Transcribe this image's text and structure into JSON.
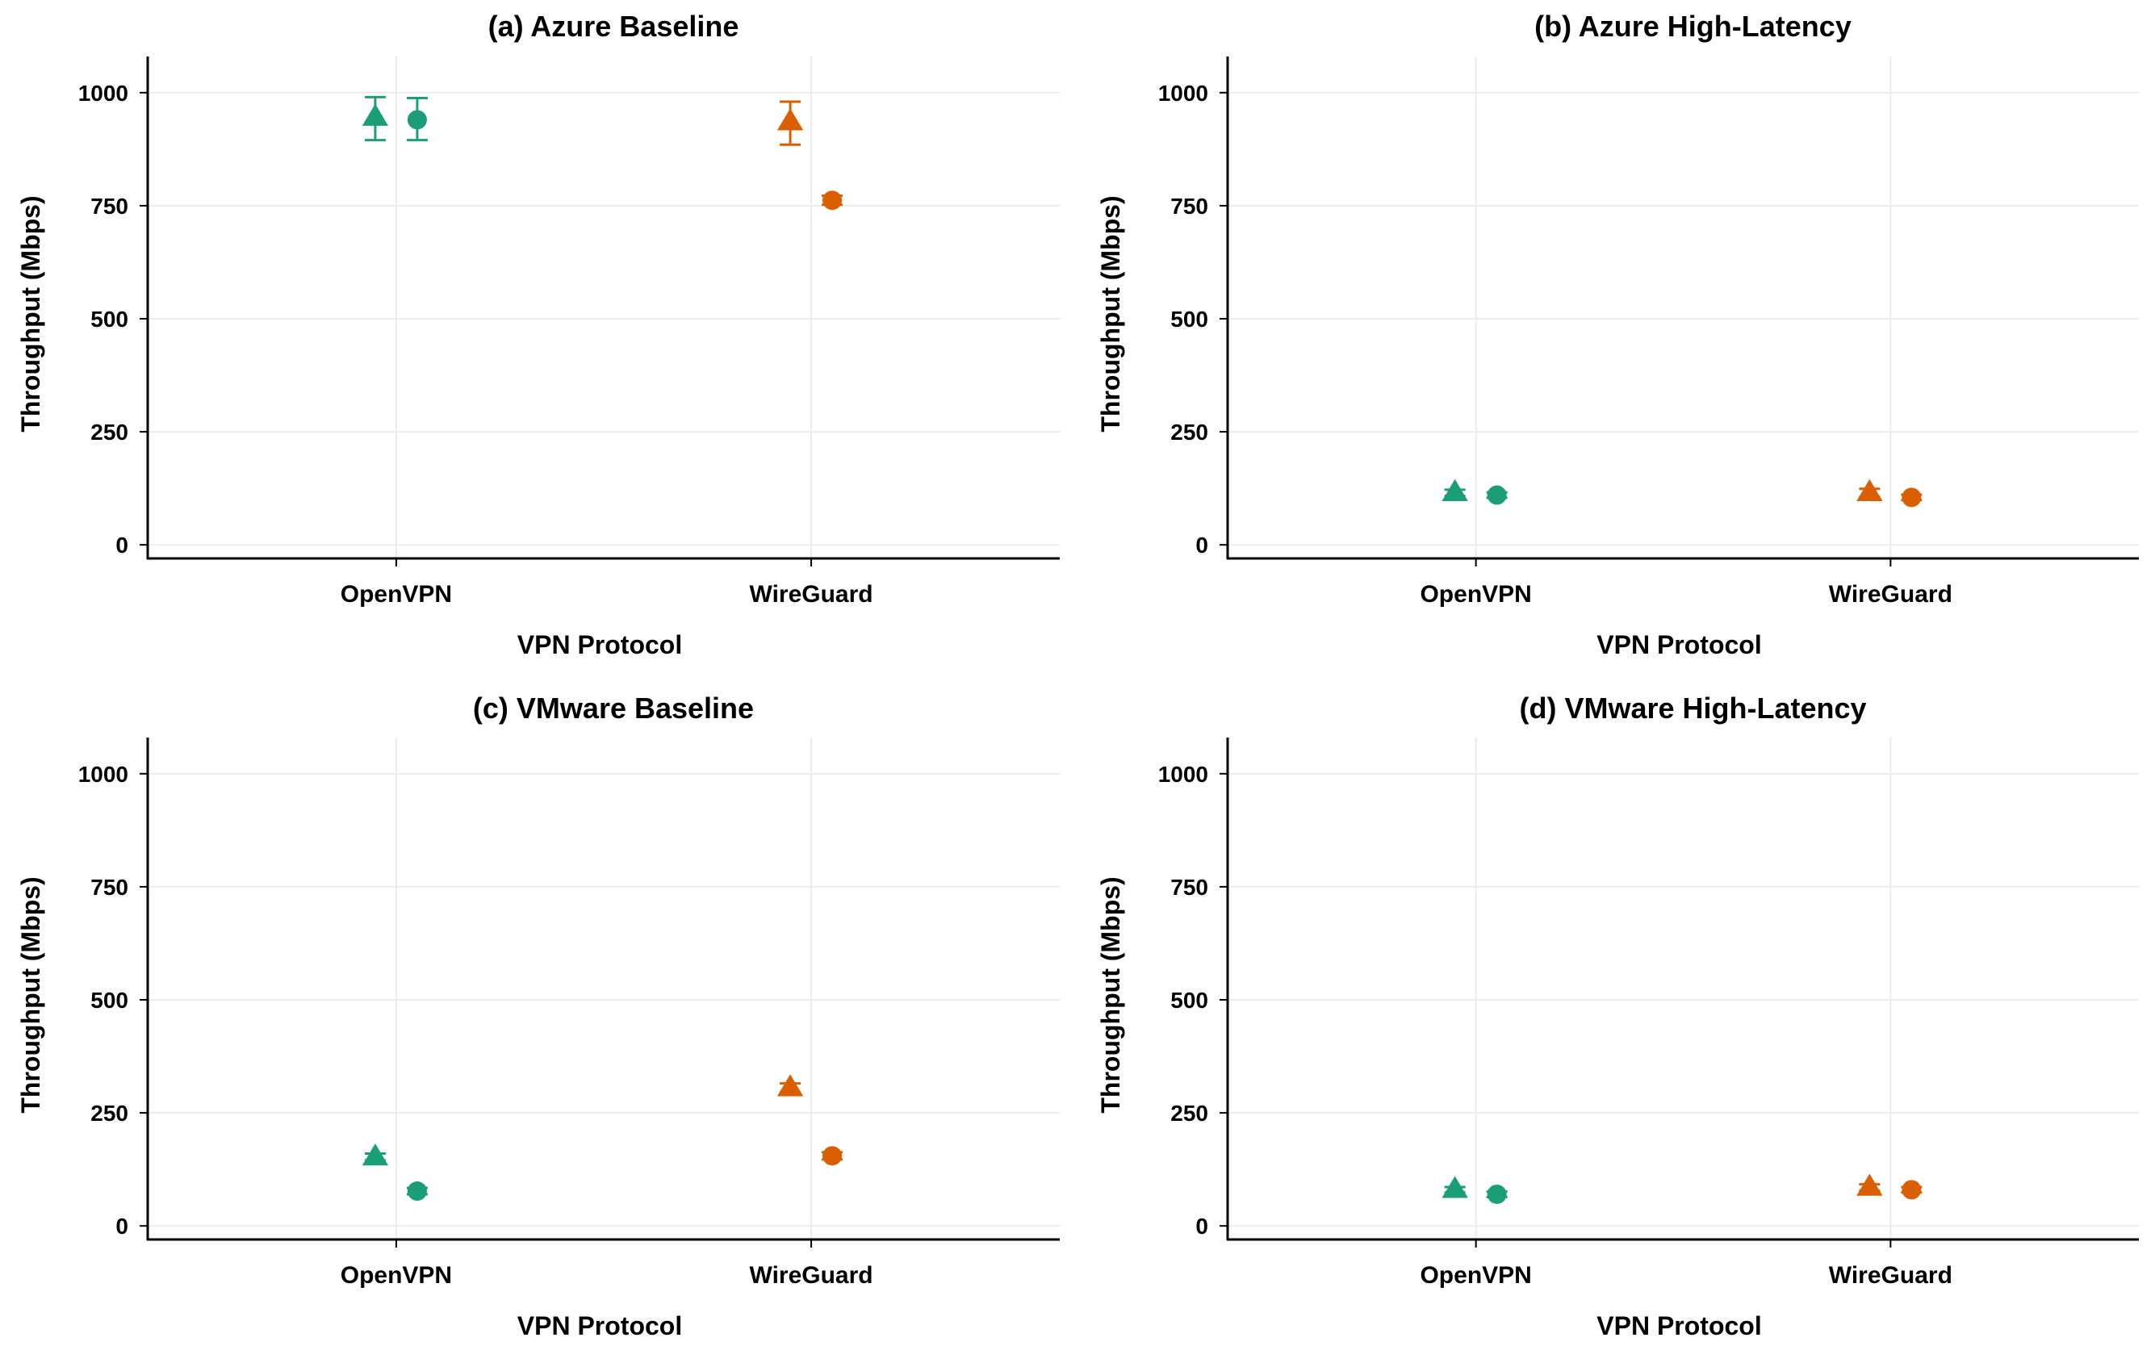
{
  "colors": {
    "openvpn": "#1b9e77",
    "wireguard": "#d95f02",
    "grid": "#ebebeb",
    "axis": "#000000"
  },
  "chart_data": [
    {
      "type": "scatter",
      "title": "(a) Azure Baseline",
      "xlabel": "VPN Protocol",
      "ylabel": "Throughput (Mbps)",
      "categories": [
        "OpenVPN",
        "WireGuard"
      ],
      "yticks": [
        0,
        250,
        500,
        750,
        1000
      ],
      "ylim": [
        -30,
        1080
      ],
      "grid": true,
      "series": [
        {
          "category": "OpenVPN",
          "marker": "triangle",
          "color_key": "openvpn",
          "value": 945,
          "err_low": 895,
          "err_high": 990
        },
        {
          "category": "OpenVPN",
          "marker": "circle",
          "color_key": "openvpn",
          "value": 940,
          "err_low": 895,
          "err_high": 988
        },
        {
          "category": "WireGuard",
          "marker": "triangle",
          "color_key": "wireguard",
          "value": 935,
          "err_low": 885,
          "err_high": 980
        },
        {
          "category": "WireGuard",
          "marker": "circle",
          "color_key": "wireguard",
          "value": 762,
          "err_low": 752,
          "err_high": 772
        }
      ]
    },
    {
      "type": "scatter",
      "title": "(b) Azure High-Latency",
      "xlabel": "VPN Protocol",
      "ylabel": "Throughput (Mbps)",
      "categories": [
        "OpenVPN",
        "WireGuard"
      ],
      "yticks": [
        0,
        250,
        500,
        750,
        1000
      ],
      "ylim": [
        -30,
        1080
      ],
      "grid": true,
      "series": [
        {
          "category": "OpenVPN",
          "marker": "triangle",
          "color_key": "openvpn",
          "value": 115,
          "err_low": 108,
          "err_high": 122
        },
        {
          "category": "OpenVPN",
          "marker": "circle",
          "color_key": "openvpn",
          "value": 110,
          "err_low": 104,
          "err_high": 116
        },
        {
          "category": "WireGuard",
          "marker": "triangle",
          "color_key": "wireguard",
          "value": 115,
          "err_low": 106,
          "err_high": 124
        },
        {
          "category": "WireGuard",
          "marker": "circle",
          "color_key": "wireguard",
          "value": 105,
          "err_low": 99,
          "err_high": 111
        }
      ]
    },
    {
      "type": "scatter",
      "title": "(c) VMware Baseline",
      "xlabel": "VPN Protocol",
      "ylabel": "Throughput (Mbps)",
      "categories": [
        "OpenVPN",
        "WireGuard"
      ],
      "yticks": [
        0,
        250,
        500,
        750,
        1000
      ],
      "ylim": [
        -30,
        1080
      ],
      "grid": true,
      "series": [
        {
          "category": "OpenVPN",
          "marker": "triangle",
          "color_key": "openvpn",
          "value": 152,
          "err_low": 145,
          "err_high": 160
        },
        {
          "category": "OpenVPN",
          "marker": "circle",
          "color_key": "openvpn",
          "value": 77,
          "err_low": 70,
          "err_high": 84
        },
        {
          "category": "WireGuard",
          "marker": "triangle",
          "color_key": "wireguard",
          "value": 305,
          "err_low": 295,
          "err_high": 315
        },
        {
          "category": "WireGuard",
          "marker": "circle",
          "color_key": "wireguard",
          "value": 155,
          "err_low": 147,
          "err_high": 163
        }
      ]
    },
    {
      "type": "scatter",
      "title": "(d) VMware High-Latency",
      "xlabel": "VPN Protocol",
      "ylabel": "Throughput (Mbps)",
      "categories": [
        "OpenVPN",
        "WireGuard"
      ],
      "yticks": [
        0,
        250,
        500,
        750,
        1000
      ],
      "ylim": [
        -30,
        1080
      ],
      "grid": true,
      "series": [
        {
          "category": "OpenVPN",
          "marker": "triangle",
          "color_key": "openvpn",
          "value": 80,
          "err_low": 74,
          "err_high": 86
        },
        {
          "category": "OpenVPN",
          "marker": "circle",
          "color_key": "openvpn",
          "value": 70,
          "err_low": 64,
          "err_high": 76
        },
        {
          "category": "WireGuard",
          "marker": "triangle",
          "color_key": "wireguard",
          "value": 85,
          "err_low": 78,
          "err_high": 92
        },
        {
          "category": "WireGuard",
          "marker": "circle",
          "color_key": "wireguard",
          "value": 80,
          "err_low": 74,
          "err_high": 86
        }
      ]
    }
  ]
}
